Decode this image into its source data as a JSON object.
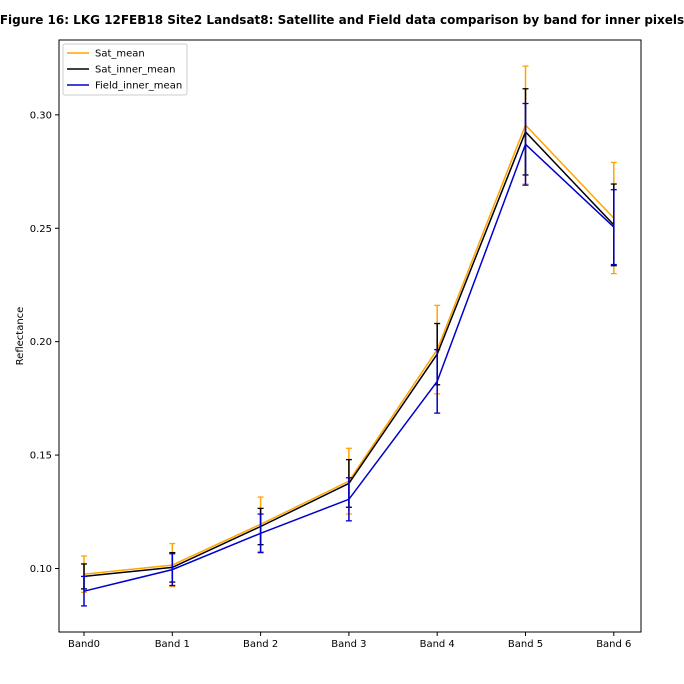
{
  "chart_data": {
    "type": "line",
    "title": "Figure 16: LKG 12FEB18 Site2 Landsat8: Satellite and Field data comparison by band for inner pixels",
    "xlabel": "",
    "ylabel": "Reflectance",
    "categories": [
      "Band0",
      "Band 1",
      "Band 2",
      "Band 3",
      "Band 4",
      "Band 5",
      "Band 6"
    ],
    "yticks": [
      "0.10",
      "0.15",
      "0.20",
      "0.25",
      "0.30"
    ],
    "ylim": [
      0.072,
      0.333
    ],
    "grid": false,
    "legend_position": "top-left",
    "series": [
      {
        "name": "Sat_mean",
        "color": "#FFA500",
        "values": [
          0.0975,
          0.1015,
          0.1195,
          0.1385,
          0.1965,
          0.2955,
          0.2545
        ],
        "errors": [
          0.008,
          0.0095,
          0.012,
          0.0145,
          0.0195,
          0.026,
          0.0245
        ]
      },
      {
        "name": "Sat_inner_mean",
        "color": "#000000",
        "values": [
          0.0965,
          0.1005,
          0.1185,
          0.1375,
          0.1945,
          0.2925,
          0.2515
        ],
        "errors": [
          0.0055,
          0.0065,
          0.008,
          0.0105,
          0.0135,
          0.019,
          0.018
        ]
      },
      {
        "name": "Field_inner_mean",
        "color": "#0000CD",
        "values": [
          0.09,
          0.0995,
          0.1155,
          0.1305,
          0.1825,
          0.287,
          0.2505
        ],
        "errors": [
          0.0065,
          0.007,
          0.0085,
          0.0095,
          0.014,
          0.018,
          0.0165
        ]
      }
    ]
  }
}
